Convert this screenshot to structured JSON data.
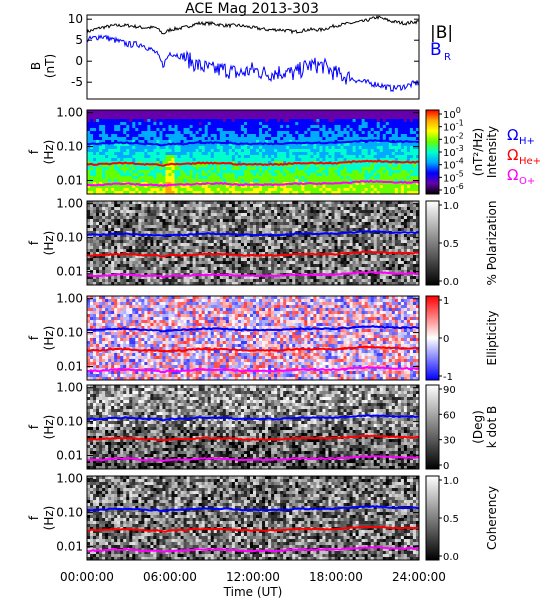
{
  "title": "ACE Mag 2013-303",
  "xlabel": "Time (UT)",
  "x_ticks": [
    "00:00:00",
    "06:00:00",
    "12:00:00",
    "18:00:00",
    "24:00:00"
  ],
  "legend": {
    "b_total": {
      "label": "|B|",
      "color": "#000000"
    },
    "b_r": {
      "label": "B",
      "sub": "R",
      "color": "#0000ff"
    },
    "omega_h": {
      "label": "Ω",
      "sub": "H+",
      "color": "#0000ff"
    },
    "omega_he": {
      "label": "Ω",
      "sub": "He+",
      "color": "#ff0000"
    },
    "omega_o": {
      "label": "Ω",
      "sub": "O+",
      "color": "#ff00ff"
    }
  },
  "chart_data": [
    {
      "type": "line",
      "ylabel": "B",
      "yunit": "(nT)",
      "ylim": [
        -9,
        11
      ],
      "yticks": [
        "10",
        "5",
        "0",
        "-5"
      ],
      "x_hours": [
        0,
        1,
        2,
        3,
        4,
        5,
        5.5,
        6,
        7,
        8,
        9,
        10,
        11,
        12,
        13,
        14,
        15,
        16,
        17,
        18,
        19,
        20,
        21,
        22,
        23,
        24
      ],
      "series": [
        {
          "name": "|B|",
          "values": [
            7,
            8,
            8.5,
            8.5,
            8,
            8,
            6.5,
            7.5,
            8,
            9,
            9,
            8.5,
            8.5,
            8,
            7.5,
            7.5,
            7,
            7.5,
            7.5,
            8.5,
            9,
            9.5,
            10.5,
            9.5,
            9,
            9.5
          ]
        },
        {
          "name": "BR",
          "values": [
            5,
            6,
            5,
            4,
            4,
            2,
            -1,
            2,
            1,
            -1,
            -2,
            -2,
            -3,
            -2,
            -3,
            -2.5,
            -3,
            -1,
            -1,
            -3,
            -4,
            -5,
            -5.5,
            -6.5,
            -6,
            -5
          ]
        }
      ]
    },
    {
      "type": "heatmap",
      "ylabel": "f",
      "yunit": "(Hz)",
      "yticks": [
        "1.00",
        "0.10",
        "0.01"
      ],
      "colorbar": {
        "label": "Intensity",
        "unit": "(nT²/Hz)",
        "ticks": [
          "10^0",
          "10^-1",
          "10^-2",
          "10^-3",
          "10^-4",
          "10^-5",
          "10^-6"
        ],
        "colors": [
          "#ff0000",
          "#ffaa00",
          "#ffff00",
          "#66ff00",
          "#00ffcc",
          "#00aaff",
          "#0000ff",
          "#6600aa",
          "#000000"
        ]
      },
      "freq_lines_hz": {
        "H+": [
          0.12,
          0.12,
          0.13,
          0.13,
          0.12,
          0.12,
          0.11,
          0.12,
          0.12,
          0.13,
          0.13,
          0.13,
          0.12,
          0.12,
          0.12,
          0.12,
          0.13,
          0.13,
          0.13,
          0.13,
          0.14,
          0.15,
          0.15,
          0.14,
          0.14,
          0.14
        ]
      }
    },
    {
      "type": "heatmap",
      "ylabel": "f",
      "yunit": "(Hz)",
      "yticks": [
        "1.00",
        "0.10",
        "0.01"
      ],
      "colorbar": {
        "label": "% Polarization",
        "ticks": [
          "1.0",
          "0.5",
          "0.0"
        ],
        "colors": [
          "#ffffff",
          "#000000"
        ]
      }
    },
    {
      "type": "heatmap",
      "ylabel": "f",
      "yunit": "(Hz)",
      "yticks": [
        "1.00",
        "0.10",
        "0.01"
      ],
      "colorbar": {
        "label": "Ellipticity",
        "ticks": [
          "1",
          "0",
          "-1"
        ],
        "colors": [
          "#ff0000",
          "#ffffff",
          "#0000ff"
        ]
      }
    },
    {
      "type": "heatmap",
      "ylabel": "f",
      "yunit": "(Hz)",
      "yticks": [
        "1.00",
        "0.10",
        "0.01"
      ],
      "colorbar": {
        "label": "k dot B",
        "unit": "(Deg)",
        "ticks": [
          "90",
          "60",
          "30",
          "0"
        ],
        "colors": [
          "#ffffff",
          "#000000"
        ]
      }
    },
    {
      "type": "heatmap",
      "ylabel": "f",
      "yunit": "(Hz)",
      "yticks": [
        "1.00",
        "0.10",
        "0.01"
      ],
      "colorbar": {
        "label": "Coherency",
        "ticks": [
          "1.0",
          "0.5",
          "0.0"
        ],
        "colors": [
          "#ffffff",
          "#000000"
        ]
      }
    }
  ]
}
